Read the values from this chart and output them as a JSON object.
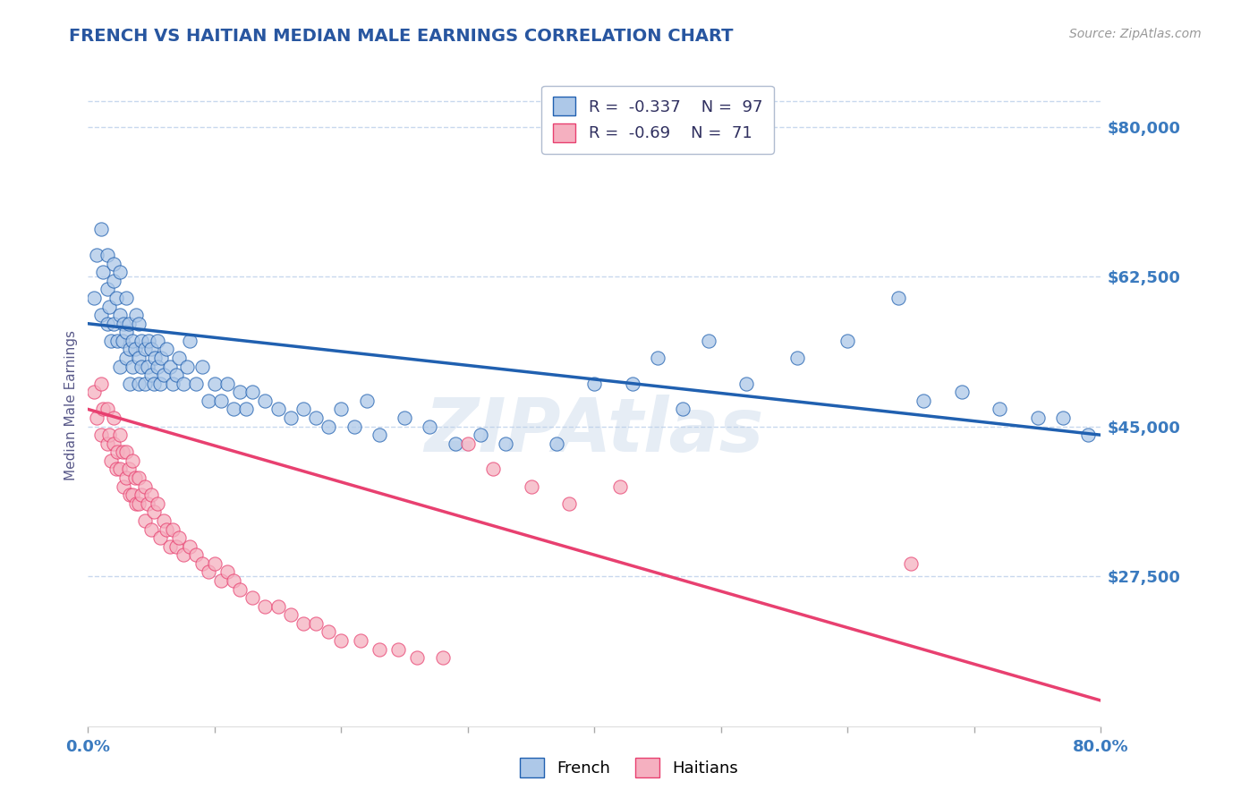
{
  "title": "FRENCH VS HAITIAN MEDIAN MALE EARNINGS CORRELATION CHART",
  "source": "Source: ZipAtlas.com",
  "ylabel": "Median Male Earnings",
  "xlim": [
    0.0,
    0.8
  ],
  "ylim": [
    10000,
    85000
  ],
  "yticks": [
    27500,
    45000,
    62500,
    80000
  ],
  "ytick_labels": [
    "$27,500",
    "$45,000",
    "$62,500",
    "$80,000"
  ],
  "french_R": -0.337,
  "french_N": 97,
  "haitian_R": -0.69,
  "haitian_N": 71,
  "french_color": "#adc8e8",
  "haitian_color": "#f5b0c0",
  "french_line_color": "#2060b0",
  "haitian_line_color": "#e84070",
  "french_scatter_x": [
    0.005,
    0.007,
    0.01,
    0.01,
    0.012,
    0.015,
    0.015,
    0.015,
    0.017,
    0.018,
    0.02,
    0.02,
    0.02,
    0.022,
    0.023,
    0.025,
    0.025,
    0.025,
    0.027,
    0.028,
    0.03,
    0.03,
    0.03,
    0.032,
    0.033,
    0.033,
    0.035,
    0.035,
    0.037,
    0.038,
    0.04,
    0.04,
    0.04,
    0.042,
    0.042,
    0.045,
    0.045,
    0.047,
    0.048,
    0.05,
    0.05,
    0.052,
    0.053,
    0.055,
    0.055,
    0.057,
    0.058,
    0.06,
    0.062,
    0.065,
    0.067,
    0.07,
    0.072,
    0.075,
    0.078,
    0.08,
    0.085,
    0.09,
    0.095,
    0.1,
    0.105,
    0.11,
    0.115,
    0.12,
    0.125,
    0.13,
    0.14,
    0.15,
    0.16,
    0.17,
    0.18,
    0.19,
    0.2,
    0.21,
    0.22,
    0.23,
    0.25,
    0.27,
    0.29,
    0.31,
    0.33,
    0.37,
    0.4,
    0.43,
    0.45,
    0.47,
    0.49,
    0.52,
    0.56,
    0.6,
    0.64,
    0.66,
    0.69,
    0.72,
    0.75,
    0.77,
    0.79
  ],
  "french_scatter_y": [
    60000,
    65000,
    58000,
    68000,
    63000,
    61000,
    57000,
    65000,
    59000,
    55000,
    57000,
    62000,
    64000,
    60000,
    55000,
    58000,
    52000,
    63000,
    55000,
    57000,
    56000,
    60000,
    53000,
    57000,
    50000,
    54000,
    55000,
    52000,
    54000,
    58000,
    53000,
    57000,
    50000,
    55000,
    52000,
    54000,
    50000,
    52000,
    55000,
    51000,
    54000,
    50000,
    53000,
    52000,
    55000,
    50000,
    53000,
    51000,
    54000,
    52000,
    50000,
    51000,
    53000,
    50000,
    52000,
    55000,
    50000,
    52000,
    48000,
    50000,
    48000,
    50000,
    47000,
    49000,
    47000,
    49000,
    48000,
    47000,
    46000,
    47000,
    46000,
    45000,
    47000,
    45000,
    48000,
    44000,
    46000,
    45000,
    43000,
    44000,
    43000,
    43000,
    50000,
    50000,
    53000,
    47000,
    55000,
    50000,
    53000,
    55000,
    60000,
    48000,
    49000,
    47000,
    46000,
    46000,
    44000
  ],
  "haitian_scatter_x": [
    0.005,
    0.007,
    0.01,
    0.01,
    0.012,
    0.015,
    0.015,
    0.017,
    0.018,
    0.02,
    0.02,
    0.022,
    0.023,
    0.025,
    0.025,
    0.027,
    0.028,
    0.03,
    0.03,
    0.032,
    0.033,
    0.035,
    0.035,
    0.037,
    0.038,
    0.04,
    0.04,
    0.042,
    0.045,
    0.045,
    0.047,
    0.05,
    0.05,
    0.052,
    0.055,
    0.057,
    0.06,
    0.062,
    0.065,
    0.067,
    0.07,
    0.072,
    0.075,
    0.08,
    0.085,
    0.09,
    0.095,
    0.1,
    0.105,
    0.11,
    0.115,
    0.12,
    0.13,
    0.14,
    0.15,
    0.16,
    0.17,
    0.18,
    0.19,
    0.2,
    0.215,
    0.23,
    0.245,
    0.26,
    0.28,
    0.3,
    0.32,
    0.35,
    0.38,
    0.42,
    0.65
  ],
  "haitian_scatter_y": [
    49000,
    46000,
    50000,
    44000,
    47000,
    43000,
    47000,
    44000,
    41000,
    46000,
    43000,
    40000,
    42000,
    44000,
    40000,
    42000,
    38000,
    42000,
    39000,
    40000,
    37000,
    41000,
    37000,
    39000,
    36000,
    39000,
    36000,
    37000,
    38000,
    34000,
    36000,
    37000,
    33000,
    35000,
    36000,
    32000,
    34000,
    33000,
    31000,
    33000,
    31000,
    32000,
    30000,
    31000,
    30000,
    29000,
    28000,
    29000,
    27000,
    28000,
    27000,
    26000,
    25000,
    24000,
    24000,
    23000,
    22000,
    22000,
    21000,
    20000,
    20000,
    19000,
    19000,
    18000,
    18000,
    43000,
    40000,
    38000,
    36000,
    38000,
    29000
  ],
  "french_trend_x": [
    0.0,
    0.8
  ],
  "french_trend_y": [
    57000,
    44000
  ],
  "haitian_trend_x": [
    0.0,
    0.8
  ],
  "haitian_trend_y": [
    47000,
    13000
  ],
  "watermark": "ZIPAtlas",
  "title_color": "#2856a0",
  "source_color": "#999999",
  "axis_label_color": "#5a5a8a",
  "tick_color": "#3a7abf",
  "grid_color": "#c8d8ee",
  "background_color": "#ffffff",
  "legend_text_color": "#303060",
  "legend_neg_color": "#e04060",
  "bottom_ticks_x": [
    0.0,
    0.1,
    0.2,
    0.3,
    0.4,
    0.5,
    0.6,
    0.7,
    0.8
  ]
}
